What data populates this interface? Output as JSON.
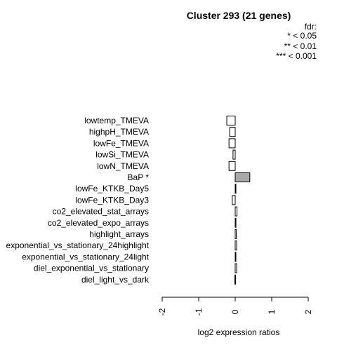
{
  "chart_data": {
    "type": "bar",
    "orientation": "horizontal",
    "title": "Cluster 293 (21 genes)",
    "xlabel": "log2 expression ratios",
    "ylabel": "",
    "xlim": [
      -2,
      2
    ],
    "xticks": [
      "-2",
      "-1",
      "0",
      "1",
      "2"
    ],
    "legend": {
      "placement": "top-right",
      "title": "fdr:",
      "entries": [
        "* < 0.05",
        "** < 0.01",
        "*** < 0.001"
      ]
    },
    "categories": [
      "lowtemp_TMEVA",
      "highpH_TMEVA",
      "lowFe_TMEVA",
      "lowSi_TMEVA",
      "lowN_TMEVA",
      "BaP *",
      "lowFe_KTKB_Day5",
      "lowFe_KTKB_Day3",
      "co2_elevated_stat_arrays",
      "co2_elevated_expo_arrays",
      "highlight_arrays",
      "exponential_vs_stationary_24highlight",
      "exponential_vs_stationary_24light",
      "diel_exponential_vs_stationary",
      "diel_light_vs_dark"
    ],
    "values": [
      -0.23,
      -0.15,
      -0.17,
      -0.06,
      -0.17,
      0.4,
      0.01,
      -0.08,
      0.05,
      0.02,
      0.03,
      0.04,
      0.01,
      0.04,
      -0.01
    ],
    "significant": [
      false,
      false,
      false,
      false,
      false,
      true,
      false,
      false,
      false,
      false,
      false,
      false,
      false,
      false,
      false
    ],
    "colors": {
      "normal": "#ffffff",
      "significant": "#a9a9a9",
      "stroke": "#000000"
    }
  }
}
